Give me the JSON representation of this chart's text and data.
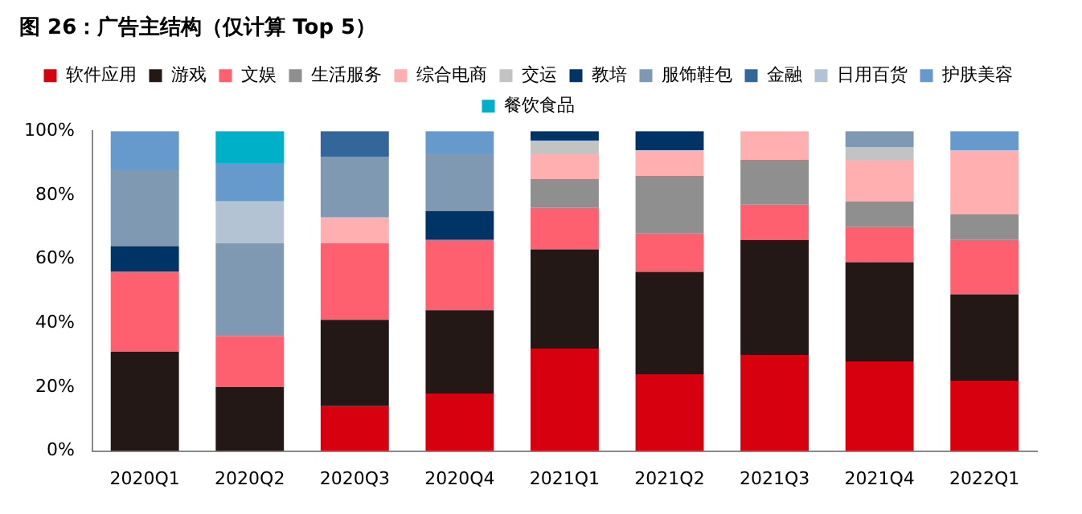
{
  "chart_data": {
    "type": "bar",
    "title": "图 26：广告主结构（仅计算 Top 5）",
    "stacked": true,
    "legend": "top",
    "grid": false,
    "categories": [
      "2020Q1",
      "2020Q2",
      "2020Q3",
      "2020Q4",
      "2021Q1",
      "2021Q2",
      "2021Q3",
      "2021Q4",
      "2022Q1"
    ],
    "ylim": [
      0,
      100
    ],
    "yticks": [
      {
        "value": 0,
        "label": "0%"
      },
      {
        "value": 20,
        "label": "20%"
      },
      {
        "value": 40,
        "label": "40%"
      },
      {
        "value": 60,
        "label": "60%"
      },
      {
        "value": 80,
        "label": "80%"
      },
      {
        "value": 100,
        "label": "100%"
      }
    ],
    "series": [
      {
        "name": "软件应用",
        "color": "#d7000f",
        "values": [
          null,
          null,
          14,
          18,
          32,
          24,
          30,
          28,
          22
        ]
      },
      {
        "name": "游戏",
        "color": "#231815",
        "values": [
          31,
          20,
          27,
          26,
          31,
          32,
          36,
          31,
          27
        ]
      },
      {
        "name": "文娱",
        "color": "#ff6070",
        "values": [
          25,
          16,
          24,
          22,
          13,
          12,
          11,
          11,
          17
        ]
      },
      {
        "name": "生活服务",
        "color": "#8f8f8f",
        "values": [
          null,
          null,
          null,
          null,
          9,
          18,
          14,
          8,
          8
        ]
      },
      {
        "name": "综合电商",
        "color": "#ffafb0",
        "values": [
          null,
          null,
          8,
          null,
          8,
          8,
          9,
          13,
          20
        ]
      },
      {
        "name": "交运",
        "color": "#c3c3c3",
        "values": [
          null,
          null,
          null,
          null,
          4,
          null,
          null,
          4,
          null
        ]
      },
      {
        "name": "教培",
        "color": "#003366",
        "values": [
          8,
          null,
          null,
          9,
          3,
          6,
          null,
          null,
          null
        ]
      },
      {
        "name": "服饰鞋包",
        "color": "#7f99b2",
        "values": [
          24,
          29,
          19,
          18,
          null,
          null,
          null,
          5,
          null
        ]
      },
      {
        "name": "金融",
        "color": "#336699",
        "values": [
          null,
          null,
          8,
          null,
          null,
          null,
          null,
          null,
          null
        ]
      },
      {
        "name": "日用百货",
        "color": "#b3c3d3",
        "values": [
          null,
          13,
          null,
          null,
          null,
          null,
          null,
          null,
          null
        ]
      },
      {
        "name": "护肤美容",
        "color": "#6699cc",
        "values": [
          12,
          12,
          null,
          7,
          null,
          null,
          null,
          null,
          6
        ]
      },
      {
        "name": "餐饮食品",
        "color": "#00b0c8",
        "values": [
          null,
          10,
          null,
          null,
          null,
          null,
          null,
          null,
          null
        ]
      }
    ]
  }
}
